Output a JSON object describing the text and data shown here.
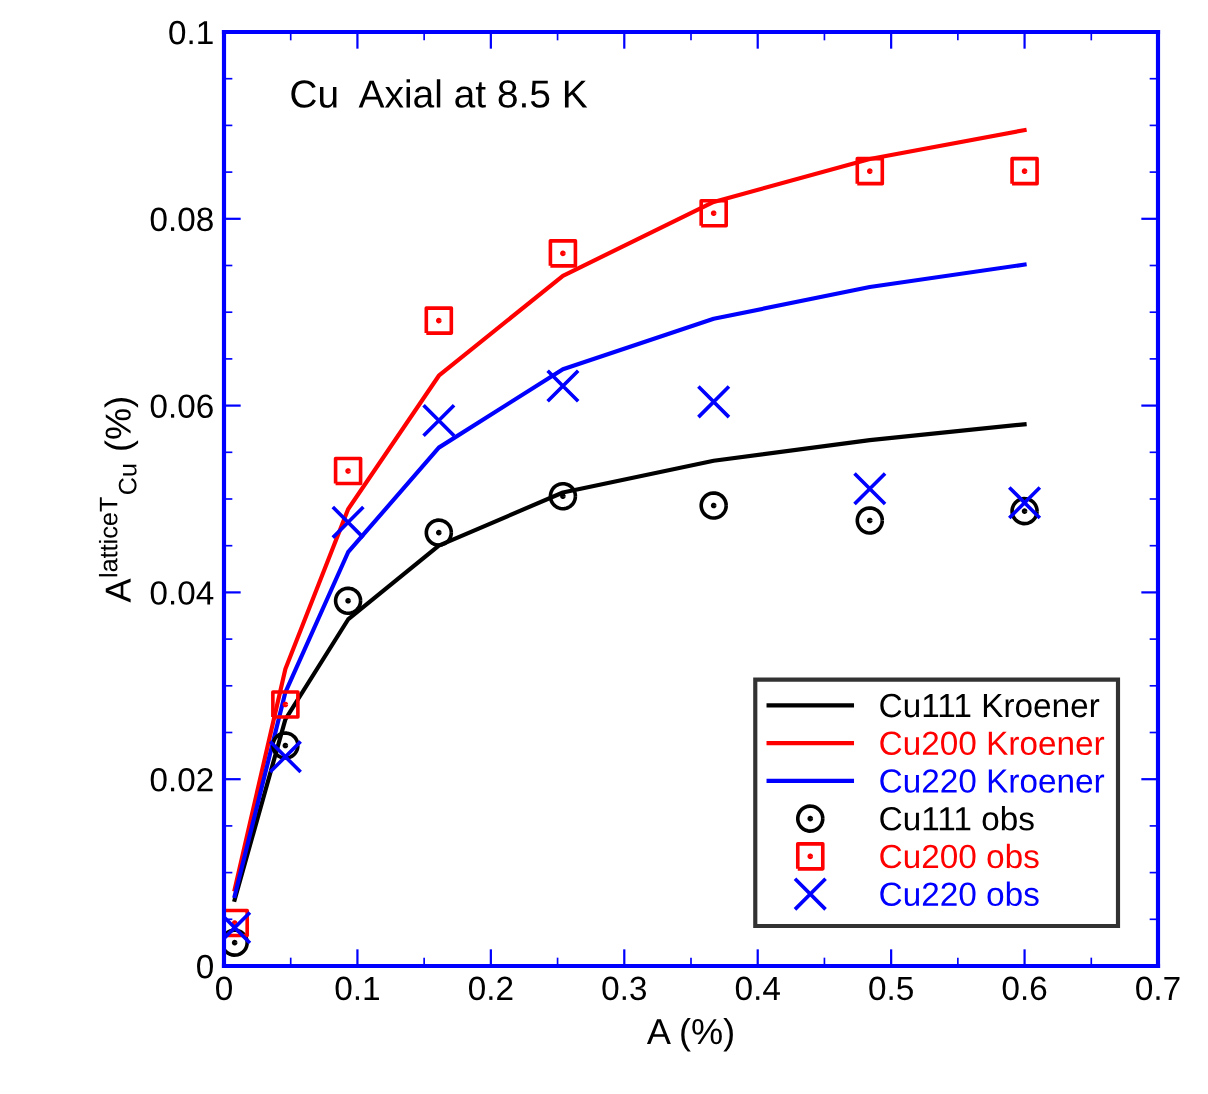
{
  "chart_data": {
    "type": "line",
    "xlabel": "A (%)",
    "ylabel": "A$^{latticeT}$$_{Cu}$ (%)",
    "annotations": [
      "Cu  Axial at 8.5 K"
    ],
    "x": [
      0.008,
      0.046,
      0.093,
      0.161,
      0.254,
      0.367,
      0.484,
      0.6
    ],
    "series": [
      {
        "name": "Cu111 Kroener",
        "color": "#000000",
        "marker": "none",
        "values": [
          0.0071,
          0.0264,
          0.0371,
          0.045,
          0.0507,
          0.0541,
          0.0563,
          0.058
        ]
      },
      {
        "name": "Cu200 Kroener",
        "color": "#ff0000",
        "marker": "none",
        "values": [
          0.0082,
          0.0318,
          0.0489,
          0.0632,
          0.0739,
          0.0818,
          0.0864,
          0.0895
        ]
      },
      {
        "name": "Cu220 Kroener",
        "color": "#0000ff",
        "marker": "none",
        "values": [
          0.0075,
          0.0293,
          0.0443,
          0.0555,
          0.0639,
          0.0693,
          0.0727,
          0.0751
        ]
      },
      {
        "name": "Cu111 obs",
        "type": "scatter",
        "color": "#000000",
        "marker": "circle",
        "values": [
          0.0025,
          0.0236,
          0.0391,
          0.0464,
          0.0503,
          0.0493,
          0.0477,
          0.0487
        ]
      },
      {
        "name": "Cu200 obs",
        "type": "scatter",
        "color": "#ff0000",
        "marker": "square",
        "values": [
          0.0046,
          0.028,
          0.053,
          0.0691,
          0.0763,
          0.0806,
          0.0851,
          0.0851
        ]
      },
      {
        "name": "Cu220 obs",
        "type": "scatter",
        "color": "#0000ff",
        "marker": "cross",
        "values": [
          0.0041,
          0.0224,
          0.0475,
          0.0584,
          0.0621,
          0.0604,
          0.0511,
          0.0496
        ]
      }
    ],
    "xlim": [
      0,
      0.7
    ],
    "xticks": [
      {
        "value": 0,
        "label": "0"
      },
      0.1,
      0.2,
      0.3,
      0.4,
      0.5,
      0.6,
      0.7
    ],
    "ylim": [
      0,
      0.1
    ],
    "yticks": [
      {
        "value": 0,
        "label": "0"
      },
      0.02,
      0.04,
      0.06,
      0.08,
      0.1
    ],
    "grid": false,
    "legend": "bottom right"
  }
}
